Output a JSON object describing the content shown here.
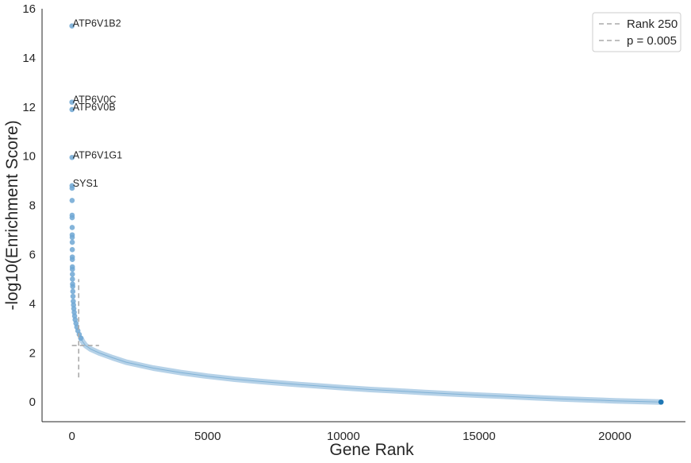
{
  "chart_data": {
    "type": "scatter",
    "title": "",
    "xlabel": "Gene Rank",
    "ylabel": "-log10(Enrichment Score)",
    "xlim": [
      -1100,
      22600
    ],
    "ylim": [
      -0.8,
      16
    ],
    "xticks": [
      "0",
      "5000",
      "10000",
      "15000",
      "20000"
    ],
    "yticks": [
      "0",
      "2",
      "4",
      "6",
      "8",
      "10",
      "12",
      "14",
      "16"
    ],
    "xtick_values": [
      0,
      5000,
      10000,
      15000,
      20000
    ],
    "ytick_values": [
      0,
      2,
      4,
      6,
      8,
      10,
      12,
      14,
      16
    ],
    "grid": false,
    "legend_position": "top-right",
    "colors": {
      "points": "#6fa7d3",
      "point_edge": "#1f77b4",
      "curve": "#9ec3e0",
      "reference_lines": "#aaaaaa",
      "last_point": "#1f77b4"
    },
    "reference_lines": [
      {
        "label": "Rank 250",
        "orientation": "vertical",
        "x": 250,
        "y_range": [
          1,
          5
        ]
      },
      {
        "label": "p = 0.005",
        "orientation": "horizontal",
        "y": 2.3,
        "x_range": [
          0,
          1000
        ]
      }
    ],
    "series": [
      {
        "top_points": [
          {
            "x": 1,
            "y": 15.3
          },
          {
            "x": 2,
            "y": 12.2
          },
          {
            "x": 3,
            "y": 11.9
          },
          {
            "x": 4,
            "y": 9.95
          },
          {
            "x": 5,
            "y": 8.8
          },
          {
            "x": 6,
            "y": 8.7
          },
          {
            "x": 7,
            "y": 8.2
          },
          {
            "x": 8,
            "y": 7.6
          },
          {
            "x": 9,
            "y": 7.5
          },
          {
            "x": 10,
            "y": 7.1
          },
          {
            "x": 11,
            "y": 6.8
          },
          {
            "x": 12,
            "y": 6.7
          },
          {
            "x": 13,
            "y": 6.5
          },
          {
            "x": 14,
            "y": 6.2
          },
          {
            "x": 15,
            "y": 5.9
          },
          {
            "x": 16,
            "y": 5.8
          },
          {
            "x": 17,
            "y": 5.5
          },
          {
            "x": 18,
            "y": 5.4
          },
          {
            "x": 19,
            "y": 5.2
          },
          {
            "x": 20,
            "y": 5.0
          },
          {
            "x": 25,
            "y": 4.8
          },
          {
            "x": 30,
            "y": 4.7
          },
          {
            "x": 35,
            "y": 4.5
          },
          {
            "x": 40,
            "y": 4.3
          },
          {
            "x": 50,
            "y": 4.1
          },
          {
            "x": 60,
            "y": 3.95
          },
          {
            "x": 70,
            "y": 3.8
          },
          {
            "x": 85,
            "y": 3.65
          },
          {
            "x": 100,
            "y": 3.5
          },
          {
            "x": 120,
            "y": 3.35
          },
          {
            "x": 150,
            "y": 3.2
          },
          {
            "x": 180,
            "y": 3.05
          },
          {
            "x": 220,
            "y": 2.9
          },
          {
            "x": 270,
            "y": 2.75
          },
          {
            "x": 330,
            "y": 2.6
          }
        ],
        "curve": [
          {
            "x": 400,
            "y": 2.45
          },
          {
            "x": 500,
            "y": 2.3
          },
          {
            "x": 700,
            "y": 2.15
          },
          {
            "x": 1000,
            "y": 2.0
          },
          {
            "x": 1500,
            "y": 1.8
          },
          {
            "x": 2000,
            "y": 1.62
          },
          {
            "x": 3000,
            "y": 1.38
          },
          {
            "x": 4000,
            "y": 1.2
          },
          {
            "x": 5000,
            "y": 1.05
          },
          {
            "x": 6000,
            "y": 0.93
          },
          {
            "x": 7000,
            "y": 0.83
          },
          {
            "x": 8000,
            "y": 0.74
          },
          {
            "x": 9000,
            "y": 0.66
          },
          {
            "x": 10000,
            "y": 0.58
          },
          {
            "x": 11000,
            "y": 0.51
          },
          {
            "x": 12000,
            "y": 0.45
          },
          {
            "x": 13000,
            "y": 0.39
          },
          {
            "x": 14000,
            "y": 0.33
          },
          {
            "x": 15000,
            "y": 0.28
          },
          {
            "x": 16000,
            "y": 0.23
          },
          {
            "x": 17000,
            "y": 0.18
          },
          {
            "x": 18000,
            "y": 0.13
          },
          {
            "x": 19000,
            "y": 0.09
          },
          {
            "x": 20000,
            "y": 0.05
          },
          {
            "x": 21000,
            "y": 0.02
          },
          {
            "x": 21700,
            "y": 0.0
          }
        ]
      }
    ],
    "annotations": [
      {
        "text": "ATP6V1B2",
        "x": 1,
        "y": 15.3
      },
      {
        "text": "ATP6V0C",
        "x": 2,
        "y": 12.2
      },
      {
        "text": "ATP6V0B",
        "x": 3,
        "y": 11.9
      },
      {
        "text": "ATP6V1G1",
        "x": 4,
        "y": 9.95
      },
      {
        "text": "SYS1",
        "x": 5,
        "y": 8.8
      }
    ],
    "legend": [
      "Rank 250",
      "p = 0.005"
    ]
  }
}
